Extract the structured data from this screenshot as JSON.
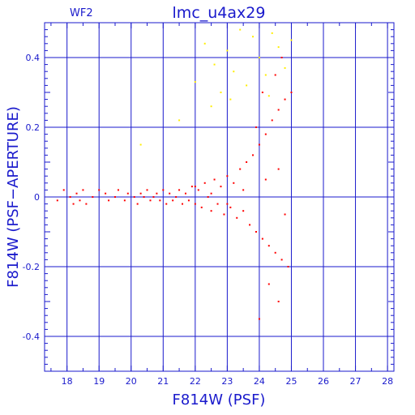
{
  "chart_data": {
    "type": "scatter",
    "title": "lmc_u4ax29",
    "panel_label": "WF2",
    "xlabel": "F814W (PSF)",
    "ylabel": "F814W (PSF−APERTURE)",
    "xlim": [
      17.3,
      28.2
    ],
    "ylim": [
      -0.5,
      0.5
    ],
    "grid": true,
    "x_ticks": [
      18,
      19,
      20,
      21,
      22,
      23,
      24,
      25,
      26,
      27,
      28
    ],
    "y_ticks": [
      -0.4,
      -0.2,
      0,
      0.2,
      0.4
    ],
    "x_tick_labels": [
      "18",
      "19",
      "20",
      "21",
      "22",
      "23",
      "24",
      "25",
      "26",
      "27",
      "28"
    ],
    "y_tick_labels": [
      "-0.4",
      "-0.2",
      "0",
      "0.2",
      "0.4"
    ],
    "colors": {
      "axes": "#1a1acc",
      "grid": "#1a1acc",
      "series_red": "#ff0000",
      "series_yellow": "#ffee00"
    },
    "series": [
      {
        "color": "#ff0000",
        "points": [
          [
            17.7,
            -0.01
          ],
          [
            17.9,
            0.02
          ],
          [
            18.1,
            0.0
          ],
          [
            18.2,
            -0.02
          ],
          [
            18.3,
            0.01
          ],
          [
            18.4,
            -0.01
          ],
          [
            18.5,
            0.02
          ],
          [
            18.6,
            -0.02
          ],
          [
            18.8,
            0.0
          ],
          [
            19.0,
            0.02
          ],
          [
            19.2,
            0.01
          ],
          [
            19.3,
            -0.01
          ],
          [
            19.5,
            0.0
          ],
          [
            19.6,
            0.02
          ],
          [
            19.8,
            -0.01
          ],
          [
            19.9,
            0.01
          ],
          [
            20.1,
            0.0
          ],
          [
            20.2,
            -0.02
          ],
          [
            20.3,
            0.01
          ],
          [
            20.4,
            0.0
          ],
          [
            20.5,
            0.02
          ],
          [
            20.6,
            -0.01
          ],
          [
            20.7,
            0.0
          ],
          [
            20.8,
            0.01
          ],
          [
            20.9,
            -0.01
          ],
          [
            21.0,
            0.02
          ],
          [
            21.1,
            -0.02
          ],
          [
            21.2,
            0.01
          ],
          [
            21.3,
            -0.01
          ],
          [
            21.4,
            0.0
          ],
          [
            21.5,
            0.02
          ],
          [
            21.6,
            -0.02
          ],
          [
            21.7,
            0.01
          ],
          [
            21.8,
            -0.01
          ],
          [
            21.9,
            0.03
          ],
          [
            22.0,
            -0.02
          ],
          [
            22.1,
            0.02
          ],
          [
            22.2,
            -0.03
          ],
          [
            22.3,
            0.04
          ],
          [
            22.4,
            0.0
          ],
          [
            22.5,
            -0.04
          ],
          [
            22.6,
            0.05
          ],
          [
            22.7,
            -0.02
          ],
          [
            22.8,
            0.03
          ],
          [
            22.9,
            -0.05
          ],
          [
            23.0,
            0.06
          ],
          [
            23.1,
            -0.03
          ],
          [
            23.2,
            0.04
          ],
          [
            23.3,
            -0.06
          ],
          [
            23.4,
            0.08
          ],
          [
            23.5,
            -0.04
          ],
          [
            23.6,
            0.1
          ],
          [
            23.7,
            -0.08
          ],
          [
            23.8,
            0.12
          ],
          [
            23.9,
            -0.1
          ],
          [
            24.0,
            0.15
          ],
          [
            24.1,
            -0.12
          ],
          [
            24.2,
            0.18
          ],
          [
            24.3,
            -0.14
          ],
          [
            24.4,
            0.22
          ],
          [
            24.5,
            -0.16
          ],
          [
            24.6,
            0.25
          ],
          [
            24.7,
            -0.18
          ],
          [
            24.8,
            0.28
          ],
          [
            24.9,
            -0.2
          ],
          [
            25.0,
            0.3
          ],
          [
            24.2,
            0.05
          ],
          [
            24.6,
            0.08
          ],
          [
            24.8,
            -0.05
          ],
          [
            23.9,
            0.2
          ],
          [
            24.1,
            0.3
          ],
          [
            24.5,
            0.35
          ],
          [
            24.7,
            0.4
          ],
          [
            24.3,
            -0.25
          ],
          [
            24.6,
            -0.3
          ],
          [
            24.0,
            -0.35
          ],
          [
            22.0,
            0.03
          ],
          [
            22.5,
            0.01
          ],
          [
            23.0,
            -0.02
          ],
          [
            23.5,
            0.02
          ]
        ]
      },
      {
        "color": "#ffee00",
        "points": [
          [
            22.0,
            0.33
          ],
          [
            22.3,
            0.44
          ],
          [
            22.6,
            0.38
          ],
          [
            22.8,
            0.3
          ],
          [
            23.0,
            0.42
          ],
          [
            23.2,
            0.36
          ],
          [
            23.4,
            0.48
          ],
          [
            23.6,
            0.32
          ],
          [
            23.8,
            0.46
          ],
          [
            24.0,
            0.4
          ],
          [
            24.2,
            0.35
          ],
          [
            24.4,
            0.47
          ],
          [
            24.6,
            0.43
          ],
          [
            24.8,
            0.37
          ],
          [
            25.0,
            0.45
          ],
          [
            23.1,
            0.28
          ],
          [
            22.5,
            0.26
          ],
          [
            24.3,
            0.29
          ],
          [
            21.5,
            0.22
          ],
          [
            20.3,
            0.15
          ]
        ]
      }
    ]
  }
}
